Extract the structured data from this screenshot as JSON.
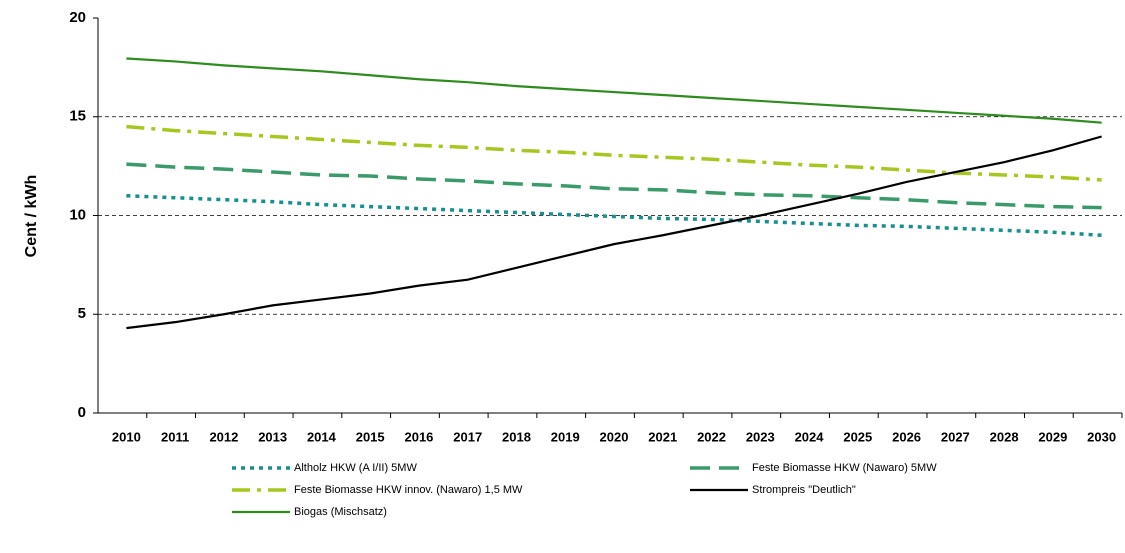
{
  "chart_data": {
    "type": "line",
    "ylabel": "Cent / kWh",
    "categories": [
      "2010",
      "2011",
      "2012",
      "2013",
      "2014",
      "2015",
      "2016",
      "2017",
      "2018",
      "2019",
      "2020",
      "2021",
      "2022",
      "2023",
      "2024",
      "2025",
      "2026",
      "2027",
      "2028",
      "2029",
      "2030"
    ],
    "ylim": [
      0,
      20
    ],
    "yticks": [
      0,
      5,
      10,
      15,
      20
    ],
    "grid": true,
    "series": [
      {
        "name": "Altholz HKW (A I/II) 5MW",
        "color": "#158f8f",
        "style": "dot",
        "values": [
          11.0,
          10.9,
          10.8,
          10.7,
          10.55,
          10.45,
          10.35,
          10.25,
          10.15,
          10.05,
          9.95,
          9.85,
          9.8,
          9.7,
          9.6,
          9.5,
          9.45,
          9.35,
          9.25,
          9.15,
          9.0
        ]
      },
      {
        "name": "Feste Biomasse HKW (Nawaro) 5MW",
        "color": "#3a9a6a",
        "style": "dash",
        "values": [
          12.6,
          12.45,
          12.35,
          12.2,
          12.05,
          12.0,
          11.85,
          11.75,
          11.6,
          11.5,
          11.35,
          11.3,
          11.15,
          11.05,
          11.0,
          10.9,
          10.8,
          10.65,
          10.55,
          10.45,
          10.4
        ]
      },
      {
        "name": "Feste Biomasse HKW innov. (Nawaro) 1,5 MW",
        "color": "#a6c81e",
        "style": "dashdot",
        "values": [
          14.5,
          14.3,
          14.15,
          14.0,
          13.85,
          13.7,
          13.55,
          13.45,
          13.3,
          13.2,
          13.05,
          12.95,
          12.85,
          12.7,
          12.55,
          12.45,
          12.3,
          12.15,
          12.05,
          11.95,
          11.8
        ]
      },
      {
        "name": "Strompreis \"Deutlich\"",
        "color": "#000000",
        "style": "solid",
        "values": [
          4.3,
          4.6,
          5.0,
          5.45,
          5.75,
          6.05,
          6.45,
          6.75,
          7.35,
          7.95,
          8.55,
          9.0,
          9.5,
          10.0,
          10.55,
          11.1,
          11.7,
          12.2,
          12.7,
          13.3,
          14.0
        ]
      },
      {
        "name": "Biogas (Mischsatz)",
        "color": "#2e8b1e",
        "style": "solid",
        "values": [
          17.95,
          17.8,
          17.6,
          17.45,
          17.3,
          17.1,
          16.9,
          16.75,
          16.55,
          16.4,
          16.25,
          16.1,
          15.95,
          15.8,
          15.65,
          15.5,
          15.35,
          15.2,
          15.05,
          14.9,
          14.7
        ]
      }
    ]
  }
}
